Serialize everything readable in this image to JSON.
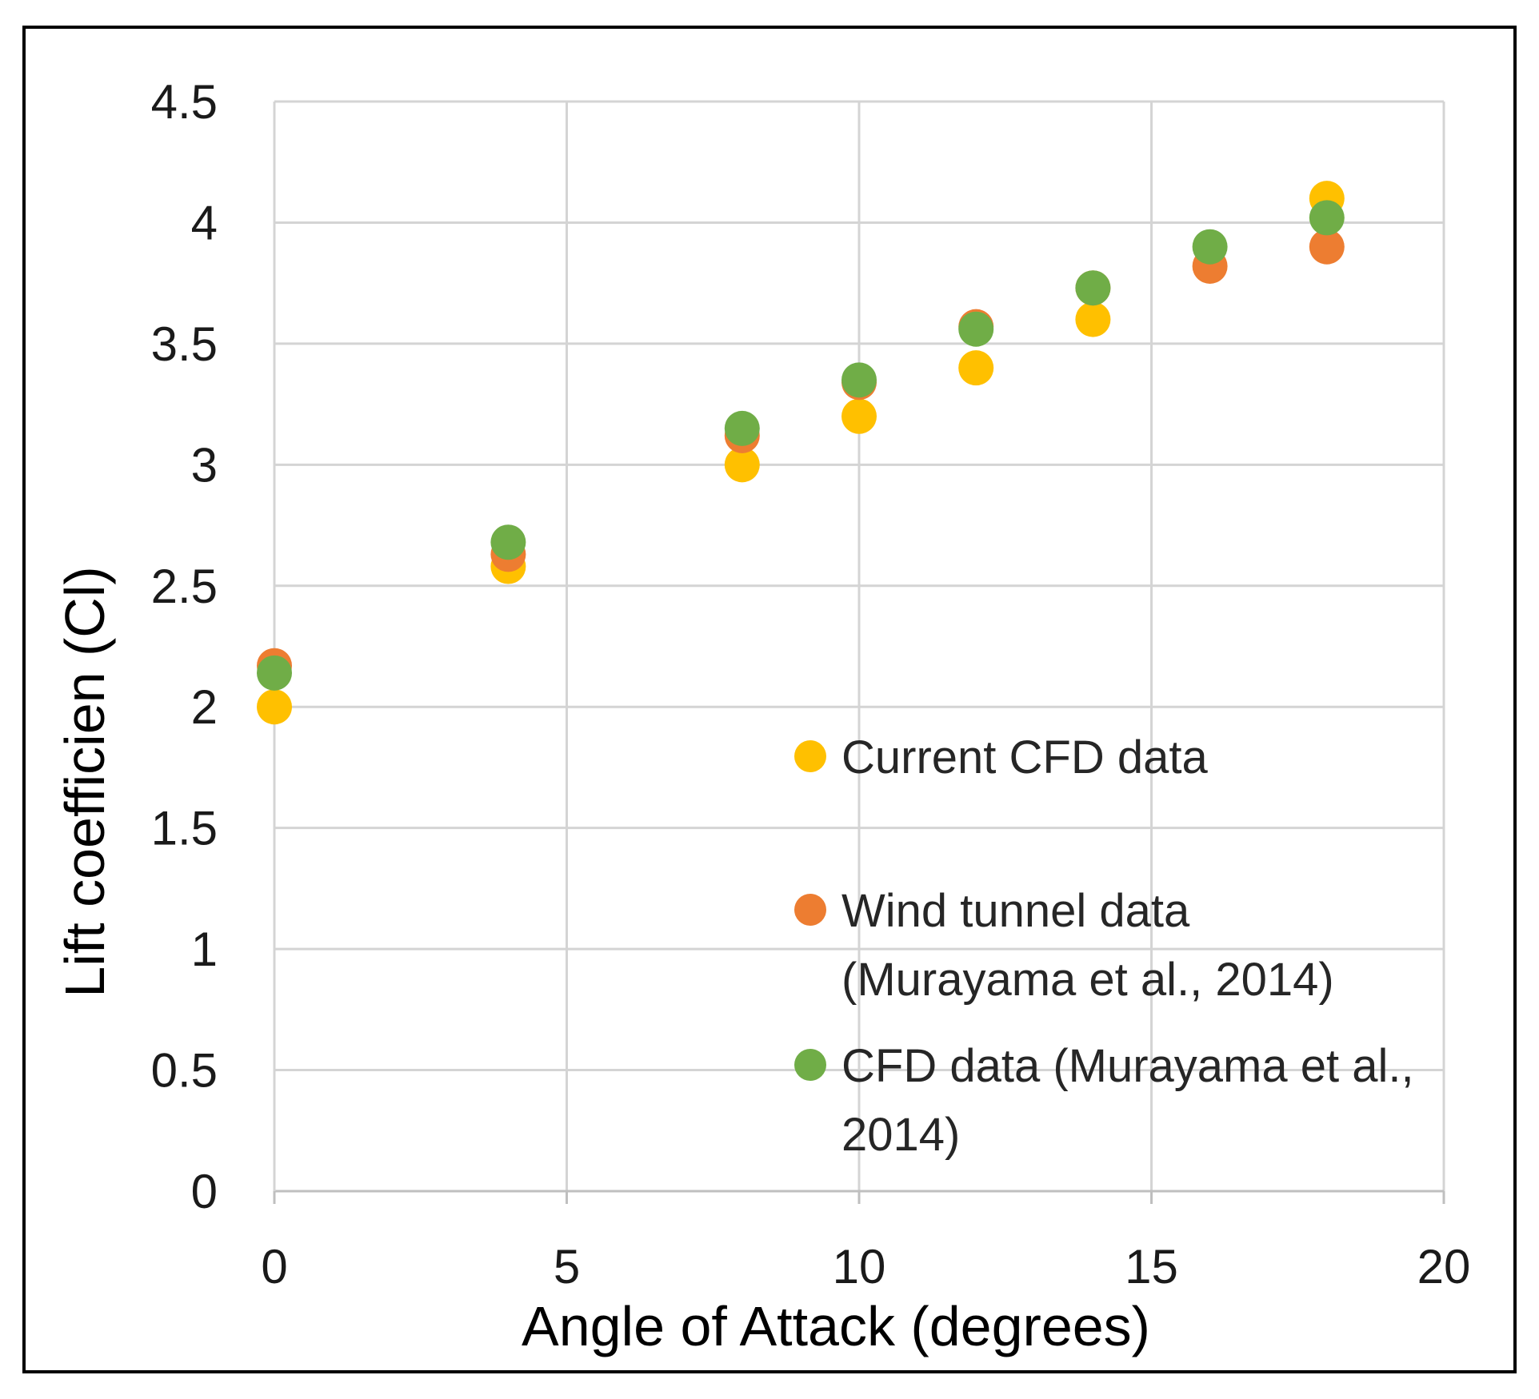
{
  "chart_data": {
    "type": "scatter",
    "title": "",
    "xlabel": "Angle of Attack (degrees)",
    "ylabel": "Lift coefficien (Cl)",
    "xlim": [
      0,
      20
    ],
    "ylim": [
      0,
      4.5
    ],
    "xticks": [
      "0",
      "5",
      "10",
      "15",
      "20"
    ],
    "yticks": [
      "0",
      "0.5",
      "1",
      "1.5",
      "2",
      "2.5",
      "3",
      "3.5",
      "4",
      "4.5"
    ],
    "grid": true,
    "legend_position": "right-center",
    "series": [
      {
        "name": "Current CFD data",
        "legend_lines": [
          "Current CFD data"
        ],
        "color": "#FFC000",
        "x": [
          0,
          4,
          8,
          10,
          12,
          14,
          18
        ],
        "y": [
          2.0,
          2.58,
          3.0,
          3.2,
          3.4,
          3.6,
          4.1
        ]
      },
      {
        "name": "Wind tunnel data (Murayama et al., 2014)",
        "legend_lines": [
          "Wind tunnel data",
          "(Murayama et al., 2014)"
        ],
        "color": "#ED7D31",
        "x": [
          0,
          4,
          8,
          10,
          12,
          14,
          16,
          18
        ],
        "y": [
          2.17,
          2.63,
          3.12,
          3.34,
          3.57,
          3.73,
          3.82,
          3.9
        ]
      },
      {
        "name": "CFD data (Murayama et al., 2014)",
        "legend_lines": [
          "CFD data (Murayama et al.,",
          "2014)"
        ],
        "color": "#70AD47",
        "x": [
          0,
          4,
          8,
          10,
          12,
          14,
          16,
          18
        ],
        "y": [
          2.14,
          2.68,
          3.15,
          3.35,
          3.56,
          3.73,
          3.9,
          4.02
        ]
      }
    ]
  }
}
